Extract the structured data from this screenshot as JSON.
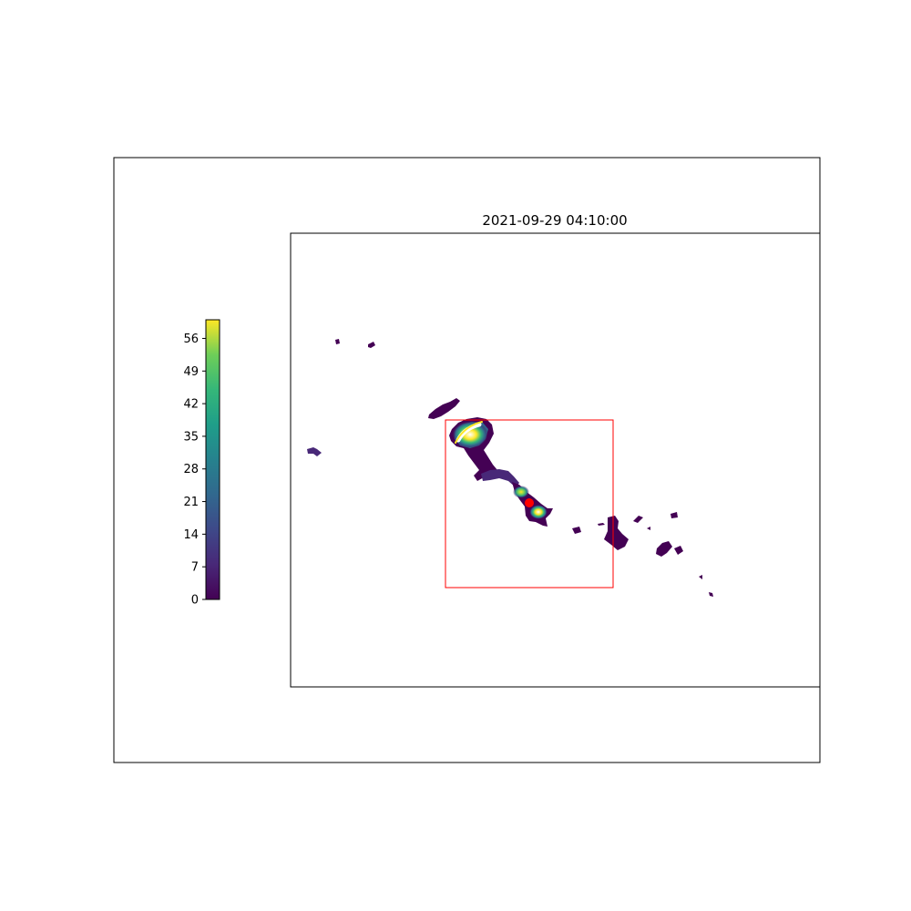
{
  "chart_data": {
    "type": "heatmap",
    "title": "2021-09-29 04:10:00",
    "xlabel": "",
    "ylabel": "",
    "grid": false,
    "colormap": "viridis",
    "colorbar": {
      "placement": "left",
      "range": [
        0,
        60
      ],
      "ticks": [
        0,
        7,
        14,
        21,
        28,
        35,
        42,
        49,
        56
      ],
      "tick_labels": [
        "0",
        "7",
        "14",
        "21",
        "28",
        "35",
        "42",
        "49",
        "56"
      ]
    },
    "highlight_box_color": "#ff0000",
    "marker_color": "#ff0000",
    "land_color_low": "#440154",
    "land_color_high": "#fde725"
  }
}
